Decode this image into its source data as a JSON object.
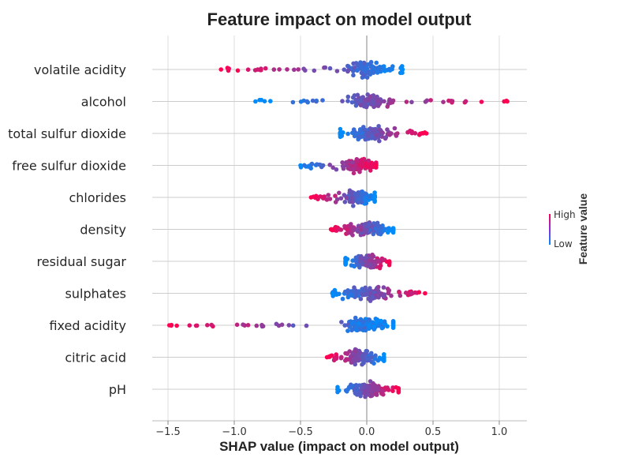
{
  "chart_data": {
    "type": "scatter",
    "subtype": "shap-beeswarm-summary",
    "title": "Feature impact on model output",
    "xlabel": "SHAP value (impact on model output)",
    "ylabel": "",
    "xlim": [
      -1.6,
      1.2
    ],
    "xticks": [
      -1.5,
      -1.0,
      -0.5,
      0.0,
      0.5,
      1.0
    ],
    "xtick_labels": [
      "−1.5",
      "−1.0",
      "−0.5",
      "0.0",
      "0.5",
      "1.0"
    ],
    "grid": true,
    "colorbar": {
      "title": "Feature value",
      "high_label": "High",
      "low_label": "Low",
      "high_color": "#ff0052",
      "low_color": "#008bfb",
      "placement": "right"
    },
    "features": [
      {
        "name": "volatile acidity",
        "spread": [
          -1.1,
          0.27
        ],
        "high_side": "negative"
      },
      {
        "name": "alcohol",
        "spread": [
          -0.84,
          1.06
        ],
        "high_side": "positive"
      },
      {
        "name": "total sulfur dioxide",
        "spread": [
          -0.2,
          0.45
        ],
        "high_side": "positive"
      },
      {
        "name": "free sulfur dioxide",
        "spread": [
          -0.5,
          0.07
        ],
        "high_side": "positive"
      },
      {
        "name": "chlorides",
        "spread": [
          -0.42,
          0.06
        ],
        "high_side": "negative"
      },
      {
        "name": "density",
        "spread": [
          -0.27,
          0.2
        ],
        "high_side": "negative"
      },
      {
        "name": "residual sugar",
        "spread": [
          -0.16,
          0.17
        ],
        "high_side": "positive"
      },
      {
        "name": "sulphates",
        "spread": [
          -0.26,
          0.44
        ],
        "high_side": "positive"
      },
      {
        "name": "fixed acidity",
        "spread": [
          -1.49,
          0.2
        ],
        "high_side": "negative"
      },
      {
        "name": "citric acid",
        "spread": [
          -0.3,
          0.13
        ],
        "high_side": "negative"
      },
      {
        "name": "pH",
        "spread": [
          -0.22,
          0.24
        ],
        "high_side": "positive"
      }
    ]
  }
}
